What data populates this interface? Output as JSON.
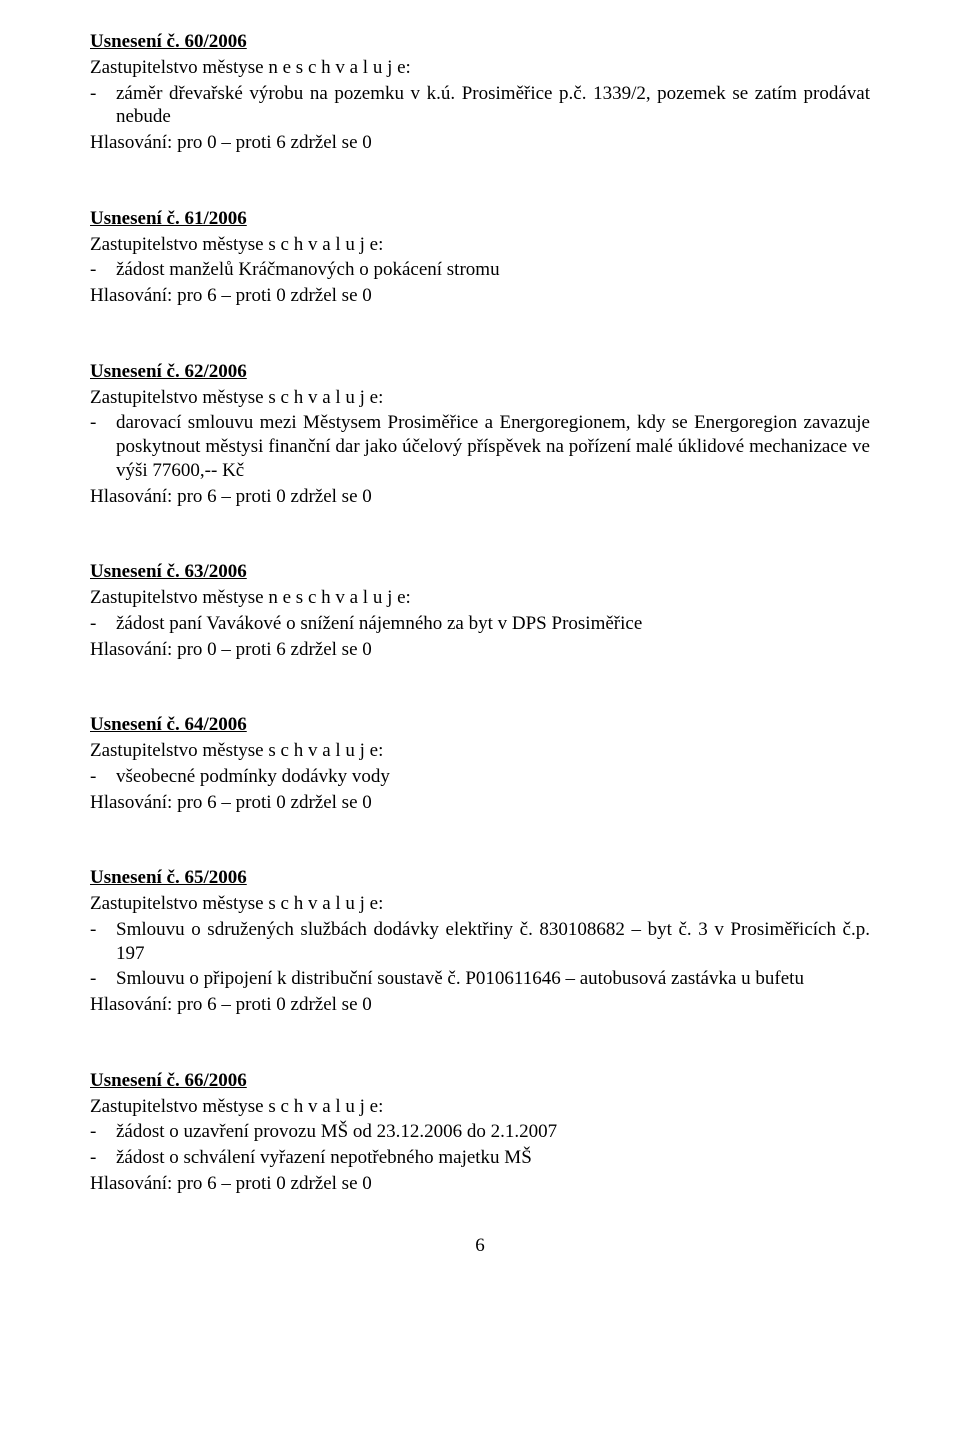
{
  "page_number": "6",
  "resolutions": [
    {
      "title": "Usnesení č. 60/2006",
      "intro": "Zastupitelstvo městyse  n e s c h v a l u j e:",
      "items": [
        {
          "text": "záměr dřevařské výrobu na pozemku v k.ú. Prosiměřice p.č. 1339/2, pozemek se zatím prodávat nebude",
          "justify": true
        }
      ],
      "voting": "Hlasování:  pro 0 – proti 6  zdržel se 0"
    },
    {
      "title": "Usnesení č. 61/2006",
      "intro": "Zastupitelstvo městyse  s c h v a l u j e:",
      "items": [
        {
          "text": "žádost manželů Kráčmanových o pokácení stromu"
        }
      ],
      "voting": "Hlasování:  pro 6 – proti 0  zdržel se 0"
    },
    {
      "title": "Usnesení č. 62/2006",
      "intro": "Zastupitelstvo městyse  s c h v a l u j e:",
      "items": [
        {
          "text": "darovací smlouvu mezi Městysem Prosiměřice a Energoregionem, kdy se Energoregion zavazuje poskytnout městysi finanční dar jako účelový příspěvek na pořízení malé úklidové mechanizace ve výši 77600,-- Kč",
          "justify": true
        }
      ],
      "voting": "Hlasování:  pro 6 – proti 0  zdržel se 0"
    },
    {
      "title": "Usnesení č. 63/2006",
      "intro": "Zastupitelstvo městyse  n e s c h v a l u j e:",
      "items": [
        {
          "text": "žádost paní Vavákové o snížení nájemného za byt v DPS Prosiměřice"
        }
      ],
      "voting": "Hlasování:  pro 0 – proti 6  zdržel se 0"
    },
    {
      "title": "Usnesení č. 64/2006",
      "intro": "Zastupitelstvo městyse  s c h v a l u j e:",
      "items": [
        {
          "text": "všeobecné podmínky dodávky vody"
        }
      ],
      "voting": "Hlasování:  pro 6 – proti 0  zdržel se 0"
    },
    {
      "title": "Usnesení č. 65/2006",
      "intro": "Zastupitelstvo městyse  s c h v a l u j e:",
      "items": [
        {
          "text": "Smlouvu o sdružených službách dodávky elektřiny č. 830108682 – byt č. 3 v Prosiměřicích č.p. 197",
          "justify": true
        },
        {
          "text": "Smlouvu o připojení k distribuční soustavě č. P010611646 – autobusová zastávka u bufetu"
        }
      ],
      "voting": "Hlasování:  pro 6 – proti 0  zdržel se 0"
    },
    {
      "title": "Usnesení č. 66/2006",
      "intro": "Zastupitelstvo městyse  s c h v a l u j e:",
      "items": [
        {
          "text": "žádost o uzavření provozu MŠ od 23.12.2006 do 2.1.2007"
        },
        {
          "text": "žádost o schválení vyřazení nepotřebného majetku MŠ"
        }
      ],
      "voting": "Hlasování:  pro 6 – proti 0  zdržel se 0"
    }
  ]
}
